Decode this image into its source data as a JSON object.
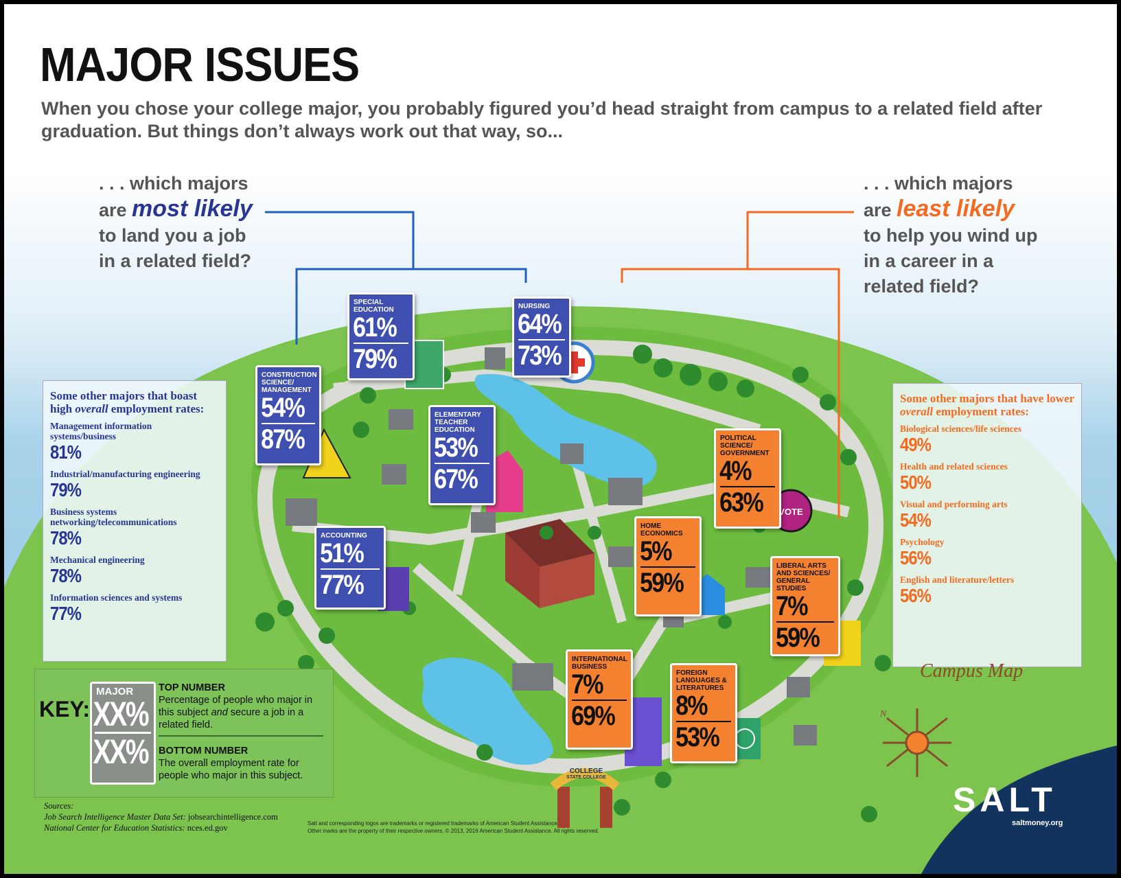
{
  "title": "MAJOR ISSUES",
  "intro": "When you chose your college major, you probably figured you’d head straight from campus to a related field after graduation. But things don’t always work out that way, so...",
  "question_left": {
    "l1": ". . . which majors",
    "l2_pre": "are ",
    "l2_em": "most likely",
    "l3": "to land you a job",
    "l4": "in a related field?"
  },
  "question_right": {
    "l1": ". . . which majors",
    "l2_pre": "are ",
    "l2_em": "least likely",
    "l3": "to help you wind up",
    "l4": "in a career in a",
    "l5": "related field?"
  },
  "signs": [
    {
      "name": "Special Education",
      "top": "61%",
      "bottom": "79%",
      "color": "blue"
    },
    {
      "name": "Nursing",
      "top": "64%",
      "bottom": "73%",
      "color": "blue"
    },
    {
      "name": "Construction Science/ Management",
      "top": "54%",
      "bottom": "87%",
      "color": "blue"
    },
    {
      "name": "Elementary Teacher Education",
      "top": "53%",
      "bottom": "67%",
      "color": "blue"
    },
    {
      "name": "Accounting",
      "top": "51%",
      "bottom": "77%",
      "color": "blue"
    },
    {
      "name": "Political Science/ Government",
      "top": "4%",
      "bottom": "63%",
      "color": "orange"
    },
    {
      "name": "Home Economics",
      "top": "5%",
      "bottom": "59%",
      "color": "orange"
    },
    {
      "name": "Liberal Arts and Sciences/ General Studies",
      "top": "7%",
      "bottom": "59%",
      "color": "orange"
    },
    {
      "name": "International Business",
      "top": "7%",
      "bottom": "69%",
      "color": "orange"
    },
    {
      "name": "Foreign Languages & Literatures",
      "top": "8%",
      "bottom": "53%",
      "color": "orange"
    }
  ],
  "vote_badge": "VOTE",
  "gate_sign": {
    "top": "COLLEGE",
    "bottom": "STATE COLLEGE"
  },
  "left_panel": {
    "heading_pre": "Some other majors that boast high ",
    "heading_em": "overall",
    "heading_post": " employment rates:",
    "items": [
      {
        "label": "Management information systems/business",
        "value": "81%"
      },
      {
        "label": "Industrial/manufacturing engineering",
        "value": "79%"
      },
      {
        "label": "Business systems networking/telecommunications",
        "value": "78%"
      },
      {
        "label": "Mechanical engineering",
        "value": "78%"
      },
      {
        "label": "Information sciences and systems",
        "value": "77%"
      }
    ]
  },
  "right_panel": {
    "heading_pre": "Some other majors that have lower ",
    "heading_em": "overall",
    "heading_post": " employment rates:",
    "items": [
      {
        "label": "Biological sciences/life sciences",
        "value": "49%"
      },
      {
        "label": "Health and related sciences",
        "value": "50%"
      },
      {
        "label": "Visual and performing arts",
        "value": "54%"
      },
      {
        "label": "Psychology",
        "value": "56%"
      },
      {
        "label": "English and literature/letters",
        "value": "56%"
      }
    ]
  },
  "key": {
    "label": "KEY:",
    "sign_name": "MAJOR",
    "sign_top": "XX%",
    "sign_bottom": "XX%",
    "top_heading": "TOP NUMBER",
    "top_text_1": "Percentage of people who major in this subject ",
    "top_text_em": "and",
    "top_text_2": " secure a job in a related field.",
    "bottom_heading": "BOTTOM NUMBER",
    "bottom_text": "The overall employment rate for people who major in this subject."
  },
  "campus_map_label": "Campus Map",
  "compass_letter": "N",
  "sources": {
    "heading": "Sources:",
    "s1_em": "Job Search Intelligence Master Data Set:",
    "s1": " jobsearchintelligence.com",
    "s2_em": "National Center for Education Statistics:",
    "s2": " nces.ed.gov"
  },
  "legal": {
    "l1": "Salt and corresponding logos are trademarks or registered trademarks of American Student Assistance.",
    "l2": "Other marks are the property of their respective owners. © 2013, 2016 American Student Assistance. All rights reserved."
  },
  "brand": {
    "logo": "SALT",
    "site": "saltmoney.org"
  },
  "colors": {
    "blue": "#3e4fb0",
    "orange": "#f4812f",
    "accent_blue": "#283593",
    "accent_orange": "#f26b21",
    "brand_navy": "#13335f"
  }
}
